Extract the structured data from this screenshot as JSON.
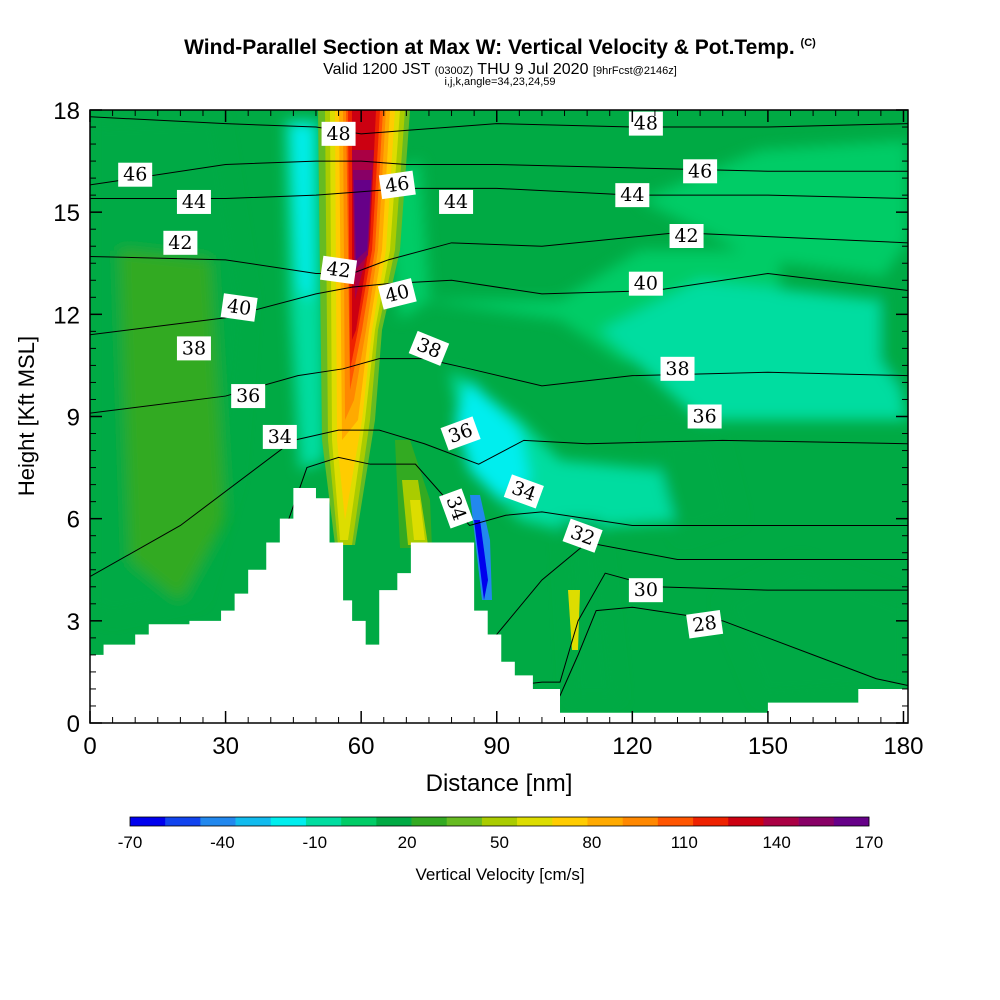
{
  "header": {
    "title": "Wind-Parallel Section at Max W: Vertical Velocity & Pot.Temp.",
    "title_mark": "(C)",
    "valid_prefix": "Valid 1200 JST",
    "valid_utc": "(0300Z)",
    "valid_date": "THU 9 Jul 2020",
    "forecast_info": "[9hrFcst@2146z]",
    "indices": "i,j,k,angle=34,23,24,59"
  },
  "colorbar": {
    "label": "Vertical Velocity [cm/s]",
    "tick_labels": [
      "-70",
      "-40",
      "-10",
      "20",
      "50",
      "80",
      "110",
      "140",
      "170"
    ],
    "colors": [
      "#0000ee",
      "#1144ee",
      "#2288ee",
      "#11bbee",
      "#00eeee",
      "#00dda0",
      "#00cc66",
      "#00aa44",
      "#33aa22",
      "#66bb22",
      "#aacc00",
      "#dddd00",
      "#ffcc00",
      "#ffaa00",
      "#ff8800",
      "#ff5500",
      "#ee2200",
      "#cc0011",
      "#aa0044",
      "#880066",
      "#660088"
    ]
  },
  "chart_data": {
    "type": "heatmap",
    "title": "Wind-Parallel Section at Max W: Vertical Velocity & Pot.Temp.",
    "xlabel": "Distance [nm]",
    "ylabel": "Height [Kft MSL]",
    "xlim": [
      0,
      181
    ],
    "ylim": [
      0,
      18
    ],
    "x_ticks": [
      0,
      30,
      60,
      90,
      120,
      150,
      180
    ],
    "y_ticks": [
      0,
      3,
      6,
      9,
      12,
      15,
      18
    ],
    "colorbar_range": [
      -70,
      170
    ],
    "colorbar_step": 10,
    "terrain_profile": {
      "x": [
        0,
        3,
        3,
        10,
        10,
        13,
        13,
        22,
        22,
        29,
        29,
        32,
        32,
        35,
        35,
        39,
        39,
        42,
        42,
        45,
        45,
        50,
        50,
        53,
        53,
        56,
        56,
        58,
        58,
        61,
        61,
        64,
        64,
        68,
        68,
        71,
        71,
        75,
        75,
        85,
        85,
        88,
        88,
        91,
        91,
        94,
        94,
        98,
        98,
        104,
        104,
        107,
        107,
        120,
        120,
        130,
        130,
        140,
        140,
        150,
        150,
        152,
        152,
        160,
        160,
        170,
        170,
        175,
        175,
        181
      ],
      "y": [
        2.0,
        2.0,
        2.3,
        2.3,
        2.6,
        2.6,
        2.9,
        2.9,
        3.0,
        3.0,
        3.3,
        3.3,
        3.8,
        3.8,
        4.5,
        4.5,
        5.3,
        5.3,
        6.0,
        6.0,
        6.9,
        6.9,
        6.6,
        6.6,
        5.3,
        5.3,
        3.6,
        3.6,
        3.0,
        3.0,
        2.3,
        2.3,
        3.9,
        3.9,
        4.4,
        4.4,
        5.3,
        5.3,
        5.3,
        5.3,
        3.3,
        3.3,
        2.6,
        2.6,
        1.8,
        1.8,
        1.4,
        1.4,
        1.0,
        1.0,
        0.3,
        0.3,
        0.3,
        0.3,
        0.3,
        0.3,
        0.3,
        0.3,
        0.3,
        0.3,
        0.6,
        0.6,
        0.6,
        0.6,
        0.6,
        0.6,
        1.0,
        1.0,
        1.0,
        1.0
      ]
    },
    "vertical_velocity_features": [
      {
        "name": "updraft core",
        "x_center_bottom": 55,
        "x_center_top": 60,
        "height_range": [
          5.5,
          18
        ],
        "peak_value": 170
      },
      {
        "name": "secondary updraft",
        "x_center": 72,
        "height_range": [
          5.5,
          9
        ],
        "peak_value": 60
      },
      {
        "name": "downdraft",
        "x_center": 86,
        "height_range": [
          3.5,
          8
        ],
        "peak_value": -60
      },
      {
        "name": "compensating sinking band",
        "x_center": 56,
        "height_range": [
          7,
          17
        ],
        "peak_value": -30
      },
      {
        "name": "low-level updraft",
        "x_center": 106,
        "height_range": [
          1,
          5
        ],
        "peak_value": 60
      }
    ],
    "potential_temperature_contours": [
      {
        "value": 28,
        "heights": [
          [
            0,
            0.6
          ],
          [
            40,
            0.6
          ],
          [
            80,
            0.6
          ],
          [
            100,
            0.8
          ],
          [
            104,
            0.8
          ],
          [
            108,
            2.0
          ],
          [
            112,
            3.3
          ],
          [
            120,
            3.4
          ],
          [
            140,
            3.0
          ],
          [
            160,
            2.0
          ],
          [
            174,
            1.3
          ],
          [
            181,
            1.1
          ]
        ]
      },
      {
        "value": 30,
        "heights": [
          [
            0,
            0.9
          ],
          [
            80,
            0.9
          ],
          [
            100,
            1.2
          ],
          [
            104,
            1.2
          ],
          [
            108,
            3.0
          ],
          [
            114,
            4.4
          ],
          [
            125,
            4.0
          ],
          [
            150,
            3.9
          ],
          [
            181,
            3.9
          ]
        ]
      },
      {
        "value": 32,
        "heights": [
          [
            0,
            1.3
          ],
          [
            30,
            1.3
          ],
          [
            80,
            1.5
          ],
          [
            90,
            2.6
          ],
          [
            100,
            4.2
          ],
          [
            110,
            5.3
          ],
          [
            130,
            4.8
          ],
          [
            181,
            4.8
          ]
        ]
      },
      {
        "value": 34,
        "heights": [
          [
            0,
            1.9
          ],
          [
            35,
            2.6
          ],
          [
            48,
            7.5
          ],
          [
            55,
            7.8
          ],
          [
            62,
            7.6
          ],
          [
            72,
            7.6
          ],
          [
            84,
            5.8
          ],
          [
            92,
            6.1
          ],
          [
            100,
            6.2
          ],
          [
            120,
            5.8
          ],
          [
            181,
            5.8
          ]
        ]
      },
      {
        "value": 36,
        "heights": [
          [
            0,
            4.3
          ],
          [
            20,
            5.8
          ],
          [
            45,
            8.3
          ],
          [
            55,
            8.6
          ],
          [
            64,
            8.6
          ],
          [
            74,
            8.2
          ],
          [
            86,
            7.6
          ],
          [
            96,
            8.3
          ],
          [
            110,
            8.2
          ],
          [
            140,
            8.3
          ],
          [
            181,
            8.2
          ]
        ]
      },
      {
        "value": 38,
        "heights": [
          [
            0,
            9.1
          ],
          [
            30,
            9.6
          ],
          [
            46,
            10.2
          ],
          [
            56,
            10.4
          ],
          [
            64,
            10.7
          ],
          [
            74,
            10.7
          ],
          [
            84,
            10.4
          ],
          [
            100,
            9.9
          ],
          [
            120,
            10.2
          ],
          [
            150,
            10.3
          ],
          [
            181,
            10.2
          ]
        ]
      },
      {
        "value": 40,
        "heights": [
          [
            0,
            11.4
          ],
          [
            30,
            11.9
          ],
          [
            50,
            12.6
          ],
          [
            58,
            12.8
          ],
          [
            66,
            12.9
          ],
          [
            80,
            13.0
          ],
          [
            100,
            12.6
          ],
          [
            125,
            12.7
          ],
          [
            150,
            13.2
          ],
          [
            181,
            12.7
          ]
        ]
      },
      {
        "value": 42,
        "heights": [
          [
            0,
            13.7
          ],
          [
            30,
            13.6
          ],
          [
            50,
            13.2
          ],
          [
            58,
            13.2
          ],
          [
            66,
            13.6
          ],
          [
            80,
            14.1
          ],
          [
            100,
            14.0
          ],
          [
            130,
            14.4
          ],
          [
            181,
            14.1
          ]
        ]
      },
      {
        "value": 44,
        "heights": [
          [
            0,
            15.4
          ],
          [
            30,
            15.4
          ],
          [
            50,
            15.5
          ],
          [
            60,
            15.6
          ],
          [
            70,
            15.7
          ],
          [
            90,
            15.7
          ],
          [
            120,
            15.5
          ],
          [
            150,
            15.5
          ],
          [
            181,
            15.4
          ]
        ]
      },
      {
        "value": 46,
        "heights": [
          [
            0,
            15.8
          ],
          [
            30,
            16.4
          ],
          [
            50,
            16.5
          ],
          [
            60,
            16.5
          ],
          [
            70,
            16.4
          ],
          [
            90,
            16.4
          ],
          [
            120,
            16.3
          ],
          [
            150,
            16.2
          ],
          [
            181,
            16.2
          ]
        ]
      },
      {
        "value": 48,
        "heights": [
          [
            0,
            17.8
          ],
          [
            30,
            17.6
          ],
          [
            50,
            17.5
          ],
          [
            60,
            17.3
          ],
          [
            70,
            17.4
          ],
          [
            90,
            17.6
          ],
          [
            120,
            17.5
          ],
          [
            150,
            17.5
          ],
          [
            181,
            17.6
          ]
        ]
      }
    ],
    "contour_labels": [
      {
        "text": "48",
        "x": 55,
        "y": 17.3,
        "angle": 0
      },
      {
        "text": "48",
        "x": 123,
        "y": 17.6,
        "angle": 0
      },
      {
        "text": "46",
        "x": 10,
        "y": 16.1,
        "angle": 0
      },
      {
        "text": "46",
        "x": 68,
        "y": 15.8,
        "angle": -8
      },
      {
        "text": "46",
        "x": 135,
        "y": 16.2,
        "angle": 0
      },
      {
        "text": "44",
        "x": 23,
        "y": 15.3,
        "angle": 0
      },
      {
        "text": "44",
        "x": 81,
        "y": 15.3,
        "angle": 0
      },
      {
        "text": "44",
        "x": 120,
        "y": 15.5,
        "angle": 0
      },
      {
        "text": "42",
        "x": 20,
        "y": 14.1,
        "angle": 0
      },
      {
        "text": "42",
        "x": 55,
        "y": 13.3,
        "angle": 8
      },
      {
        "text": "42",
        "x": 132,
        "y": 14.3,
        "angle": 0
      },
      {
        "text": "40",
        "x": 33,
        "y": 12.2,
        "angle": 8
      },
      {
        "text": "40",
        "x": 68,
        "y": 12.6,
        "angle": -14
      },
      {
        "text": "40",
        "x": 123,
        "y": 12.9,
        "angle": 0
      },
      {
        "text": "38",
        "x": 23,
        "y": 11.0,
        "angle": 0
      },
      {
        "text": "38",
        "x": 75,
        "y": 11.0,
        "angle": 22
      },
      {
        "text": "38",
        "x": 130,
        "y": 10.4,
        "angle": 0
      },
      {
        "text": "36",
        "x": 35,
        "y": 9.6,
        "angle": 0
      },
      {
        "text": "36",
        "x": 82,
        "y": 8.5,
        "angle": -20
      },
      {
        "text": "36",
        "x": 136,
        "y": 9.0,
        "angle": 0
      },
      {
        "text": "34",
        "x": 42,
        "y": 8.4,
        "angle": 0
      },
      {
        "text": "34",
        "x": 81,
        "y": 6.3,
        "angle": 70
      },
      {
        "text": "34",
        "x": 96,
        "y": 6.8,
        "angle": 20
      },
      {
        "text": "32",
        "x": 109,
        "y": 5.5,
        "angle": 20
      },
      {
        "text": "30",
        "x": 123,
        "y": 3.9,
        "angle": 0
      },
      {
        "text": "28",
        "x": 136,
        "y": 2.9,
        "angle": -8
      }
    ]
  }
}
